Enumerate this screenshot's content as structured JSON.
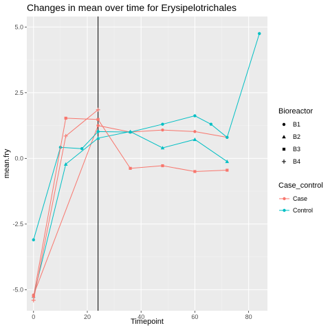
{
  "chart_data": {
    "type": "line",
    "title": "Changes in mean over time for  Erysipelotrichales",
    "xlabel": "Timepoint",
    "ylabel": "mean.fry",
    "xlim": [
      -2.5,
      87
    ],
    "ylim": [
      -5.8,
      5.4
    ],
    "x_ticks": [
      {
        "value": 0,
        "label": "0"
      },
      {
        "value": 20,
        "label": "20"
      },
      {
        "value": 40,
        "label": "40"
      },
      {
        "value": 60,
        "label": "60"
      },
      {
        "value": 80,
        "label": "80"
      }
    ],
    "y_ticks": [
      {
        "value": -5.0,
        "label": "-5.0"
      },
      {
        "value": -2.5,
        "label": "-2.5"
      },
      {
        "value": 0.0,
        "label": "0.0"
      },
      {
        "value": 2.5,
        "label": "2.5"
      },
      {
        "value": 5.0,
        "label": "5.0"
      }
    ],
    "vline_x": 24,
    "grid": true,
    "colors": {
      "Case": "#f8766d",
      "Control": "#00bfc4"
    },
    "legend_placement": "right",
    "legend": {
      "bioreactor_title": "Bioreactor",
      "bioreactor_items": [
        {
          "label": "B1",
          "shape": "circle"
        },
        {
          "label": "B2",
          "shape": "triangle"
        },
        {
          "label": "B3",
          "shape": "square"
        },
        {
          "label": "B4",
          "shape": "plus"
        }
      ],
      "case_title": "Case_control",
      "case_items": [
        {
          "label": "Case",
          "color": "#f8766d"
        },
        {
          "label": "Control",
          "color": "#00bfc4"
        }
      ]
    },
    "series": [
      {
        "bioreactor": "B1",
        "group": "Case",
        "shape": "circle",
        "x": [
          0,
          24,
          36,
          48,
          60,
          72
        ],
        "y": [
          -5.2,
          1.25,
          1.0,
          1.08,
          1.02,
          0.8
        ]
      },
      {
        "bioreactor": "B1",
        "group": "Control",
        "shape": "circle",
        "x": [
          0,
          10,
          18,
          24,
          36,
          48,
          60,
          66,
          72,
          84
        ],
        "y": [
          -3.1,
          0.42,
          0.37,
          1.02,
          1.0,
          1.3,
          1.62,
          1.3,
          0.8,
          4.75
        ]
      },
      {
        "bioreactor": "B2",
        "group": "Control",
        "shape": "triangle",
        "x": [
          0,
          12,
          24,
          36,
          48,
          60,
          72
        ],
        "y": [
          -5.25,
          -0.22,
          0.77,
          1.02,
          0.4,
          0.72,
          -0.12
        ]
      },
      {
        "bioreactor": "B3",
        "group": "Case",
        "shape": "square",
        "x": [
          0,
          12,
          24,
          36,
          48,
          60,
          72
        ],
        "y": [
          -5.25,
          1.53,
          1.48,
          -0.38,
          -0.28,
          -0.5,
          -0.45
        ]
      },
      {
        "bioreactor": "B4",
        "group": "Case",
        "shape": "plus",
        "x": [
          0,
          12,
          24
        ],
        "y": [
          -5.4,
          0.85,
          1.85
        ]
      }
    ]
  }
}
